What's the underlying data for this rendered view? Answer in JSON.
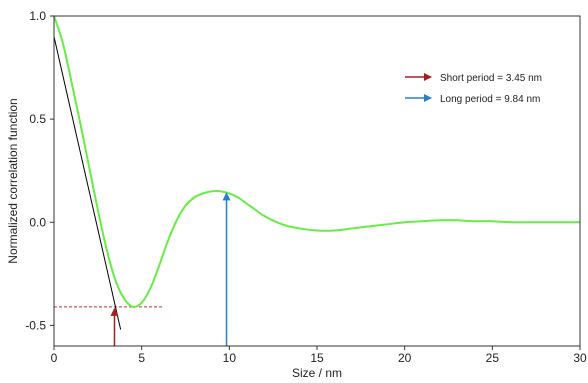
{
  "chart_data": {
    "type": "line",
    "xlabel": "Size / nm",
    "ylabel": "Normalized correlation function",
    "xlim": [
      0,
      30
    ],
    "ylim": [
      -0.6,
      1.0
    ],
    "x_ticks": [
      0,
      5,
      10,
      15,
      20,
      25,
      30
    ],
    "y_ticks": [
      1.0,
      0.5,
      0.0,
      -0.5
    ],
    "y_tick_labels": [
      "1.0",
      "0.5",
      "0.0",
      "-0.5"
    ],
    "grid": false,
    "legend_position": "top-right",
    "series": [
      {
        "color": "#66ee44",
        "x": [
          0,
          0.5,
          1,
          1.5,
          2,
          2.5,
          3,
          3.5,
          4,
          4.5,
          5,
          5.5,
          6,
          6.5,
          7,
          7.5,
          8,
          8.5,
          9,
          9.5,
          10,
          10.5,
          11,
          11.5,
          12,
          13,
          14,
          15,
          16,
          17,
          18,
          19,
          20,
          21,
          22,
          23,
          24,
          25,
          26,
          27,
          28,
          29,
          30
        ],
        "y": [
          1.0,
          0.87,
          0.68,
          0.48,
          0.27,
          0.06,
          -0.13,
          -0.28,
          -0.37,
          -0.41,
          -0.39,
          -0.32,
          -0.21,
          -0.09,
          0.01,
          0.08,
          0.12,
          0.14,
          0.15,
          0.15,
          0.14,
          0.12,
          0.09,
          0.06,
          0.03,
          -0.01,
          -0.03,
          -0.04,
          -0.04,
          -0.03,
          -0.02,
          -0.01,
          0.0,
          0.005,
          0.01,
          0.01,
          0.005,
          0.005,
          0.0,
          0.0,
          0.0,
          0.0,
          0.0
        ]
      }
    ],
    "tangent_line": {
      "color": "#000000",
      "x": [
        0,
        3.8
      ],
      "y": [
        0.9,
        -0.52
      ]
    },
    "dashed_line": {
      "color": "#c0303a",
      "y": -0.41,
      "x": [
        0,
        6.2
      ]
    },
    "arrows": [
      {
        "name": "Short period =  3.45 nm",
        "color": "#a02020",
        "x": 3.45,
        "y_from": -0.6,
        "y_to": -0.41
      },
      {
        "name": "Long period =  9.84 nm",
        "color": "#2a7fc8",
        "x": 9.84,
        "y_from": -0.6,
        "y_to": 0.15
      }
    ],
    "legend": [
      {
        "label": "Short period =  3.45 nm",
        "color": "#a02020"
      },
      {
        "label": "Long period =  9.84 nm",
        "color": "#2a7fc8"
      }
    ]
  }
}
